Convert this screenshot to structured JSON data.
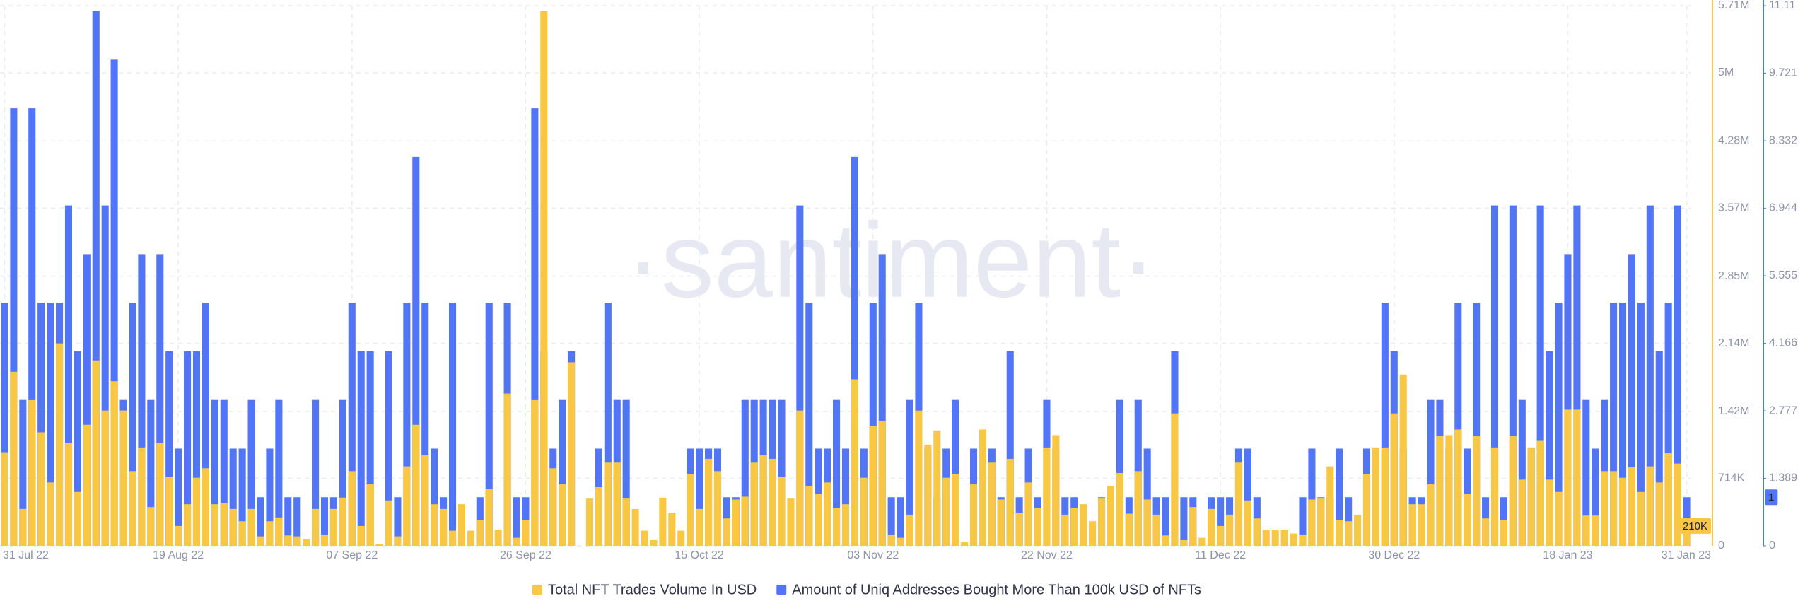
{
  "chart_data": {
    "type": "bar",
    "watermark": "·santiment·",
    "categories": [
      "31 Jul 22",
      null,
      null,
      null,
      null,
      null,
      null,
      null,
      null,
      null,
      null,
      null,
      null,
      null,
      null,
      null,
      null,
      null,
      null,
      "19 Aug 22",
      null,
      null,
      null,
      null,
      null,
      null,
      null,
      null,
      null,
      null,
      null,
      null,
      null,
      null,
      null,
      null,
      null,
      null,
      "07 Sep 22",
      null,
      null,
      null,
      null,
      null,
      null,
      null,
      null,
      null,
      null,
      null,
      null,
      null,
      null,
      null,
      null,
      null,
      null,
      "26 Sep 22",
      null,
      null,
      null,
      null,
      null,
      null,
      null,
      null,
      null,
      null,
      null,
      null,
      null,
      null,
      null,
      null,
      null,
      null,
      "15 Oct 22",
      null,
      null,
      null,
      null,
      null,
      null,
      null,
      null,
      null,
      null,
      null,
      null,
      null,
      null,
      null,
      null,
      null,
      null,
      "03 Nov 22",
      null,
      null,
      null,
      null,
      null,
      null,
      null,
      null,
      null,
      null,
      null,
      null,
      null,
      null,
      null,
      null,
      null,
      null,
      "22 Nov 22",
      null,
      null,
      null,
      null,
      null,
      null,
      null,
      null,
      null,
      null,
      null,
      null,
      null,
      null,
      null,
      null,
      null,
      null,
      "11 Dec 22",
      null,
      null,
      null,
      null,
      null,
      null,
      null,
      null,
      null,
      null,
      null,
      null,
      null,
      null,
      null,
      null,
      null,
      null,
      "30 Dec 22",
      null,
      null,
      null,
      null,
      null,
      null,
      null,
      null,
      null,
      null,
      null,
      null,
      null,
      null,
      null,
      null,
      null,
      null,
      "18 Jan 23",
      null,
      null,
      null,
      null,
      null,
      null,
      null,
      null,
      null,
      null,
      null,
      null,
      "31 Jan 23"
    ],
    "series": [
      {
        "name": "Amount of Uniq Addresses Bought More Than 100k USD of NFTs",
        "color": "#5275f5",
        "axis": "y2",
        "last_value_label": "1",
        "values": [
          5,
          9,
          3,
          9,
          5,
          5,
          5,
          7,
          4,
          6,
          11,
          7,
          10,
          3,
          5,
          6,
          3,
          6,
          4,
          2,
          4,
          4,
          5,
          3,
          3,
          2,
          2,
          3,
          1,
          2,
          3,
          1,
          1,
          0,
          3,
          1,
          1,
          3,
          5,
          4,
          4,
          0,
          4,
          1,
          5,
          8,
          5,
          2,
          1,
          5,
          0,
          0,
          1,
          5,
          0,
          5,
          1,
          1,
          9,
          4,
          2,
          3,
          4,
          0,
          0,
          2,
          5,
          3,
          3,
          0,
          0,
          0,
          0,
          0,
          0,
          2,
          2,
          2,
          2,
          1,
          1,
          3,
          3,
          3,
          3,
          3,
          0,
          7,
          5,
          2,
          2,
          3,
          2,
          8,
          2,
          5,
          6,
          1,
          1,
          3,
          5,
          2,
          1,
          2,
          3,
          0,
          2,
          2,
          2,
          1,
          4,
          1,
          2,
          1,
          3,
          2,
          1,
          1,
          0,
          0,
          1,
          1,
          3,
          1,
          3,
          2,
          1,
          1,
          4,
          1,
          1,
          0,
          1,
          1,
          1,
          2,
          2,
          1,
          0,
          0,
          0,
          0,
          1,
          2,
          1,
          1,
          2,
          1,
          0,
          2,
          2,
          5,
          4,
          2,
          1,
          1,
          3,
          3,
          2,
          5,
          2,
          5,
          1,
          7,
          1,
          7,
          3,
          2,
          7,
          4,
          5,
          6,
          7,
          3,
          2,
          3,
          5,
          5,
          6,
          5,
          7,
          4,
          5,
          7,
          1
        ]
      },
      {
        "name": "Total NFT Trades Volume In USD",
        "color": "#f8c744",
        "axis": "y",
        "last_value_label": "210K",
        "values": [
          990000,
          1840000,
          390000,
          1540000,
          1200000,
          670000,
          2140000,
          1090000,
          570000,
          1280000,
          1960000,
          1430000,
          1740000,
          1430000,
          790000,
          1040000,
          410000,
          1090000,
          730000,
          210000,
          440000,
          720000,
          820000,
          440000,
          450000,
          390000,
          260000,
          390000,
          100000,
          260000,
          300000,
          110000,
          100000,
          70000,
          390000,
          120000,
          390000,
          510000,
          790000,
          210000,
          650000,
          20000,
          480000,
          100000,
          840000,
          1280000,
          960000,
          440000,
          390000,
          160000,
          440000,
          160000,
          270000,
          600000,
          170000,
          1610000,
          85000,
          270000,
          1540000,
          5650000,
          820000,
          650000,
          1940000,
          0,
          500000,
          620000,
          880000,
          880000,
          500000,
          390000,
          160000,
          60000,
          510000,
          350000,
          160000,
          760000,
          390000,
          920000,
          790000,
          290000,
          490000,
          520000,
          880000,
          960000,
          920000,
          730000,
          500000,
          1430000,
          630000,
          550000,
          670000,
          400000,
          440000,
          1760000,
          720000,
          1270000,
          1320000,
          120000,
          85000,
          330000,
          1430000,
          1070000,
          1220000,
          720000,
          760000,
          40000,
          650000,
          1230000,
          880000,
          490000,
          920000,
          350000,
          670000,
          400000,
          1040000,
          1170000,
          330000,
          400000,
          440000,
          260000,
          500000,
          630000,
          770000,
          340000,
          790000,
          490000,
          330000,
          110000,
          1400000,
          60000,
          410000,
          85000,
          390000,
          210000,
          330000,
          880000,
          480000,
          290000,
          170000,
          170000,
          170000,
          130000,
          120000,
          490000,
          500000,
          840000,
          270000,
          260000,
          330000,
          760000,
          1040000,
          1040000,
          1400000,
          1810000,
          440000,
          440000,
          650000,
          1160000,
          1170000,
          1230000,
          550000,
          1160000,
          290000,
          1040000,
          270000,
          1160000,
          700000,
          1040000,
          1110000,
          700000,
          570000,
          1440000,
          1440000,
          320000,
          320000,
          790000,
          790000,
          720000,
          830000,
          570000,
          840000,
          670000,
          980000,
          870000,
          210000
        ]
      }
    ],
    "ylim": [
      0,
      5710000
    ],
    "yticks": [
      0,
      {
        "value": 714000,
        "label": "714K"
      },
      {
        "value": 1420000,
        "label": "1.42M"
      },
      {
        "value": 2140000,
        "label": "2.14M"
      },
      {
        "value": 2850000,
        "label": "2.85M"
      },
      {
        "value": 3570000,
        "label": "3.57M"
      },
      {
        "value": 4280000,
        "label": "4.28M"
      },
      {
        "value": 5000000,
        "label": "5M"
      },
      {
        "value": 5710000,
        "label": "5.71M"
      }
    ],
    "y2lim": [
      0,
      11.11
    ],
    "y2ticks": [
      0,
      1.389,
      2.777,
      4.166,
      5.555,
      6.944,
      8.332,
      9.721,
      11.11
    ],
    "grid": true,
    "legend": "bottom"
  }
}
